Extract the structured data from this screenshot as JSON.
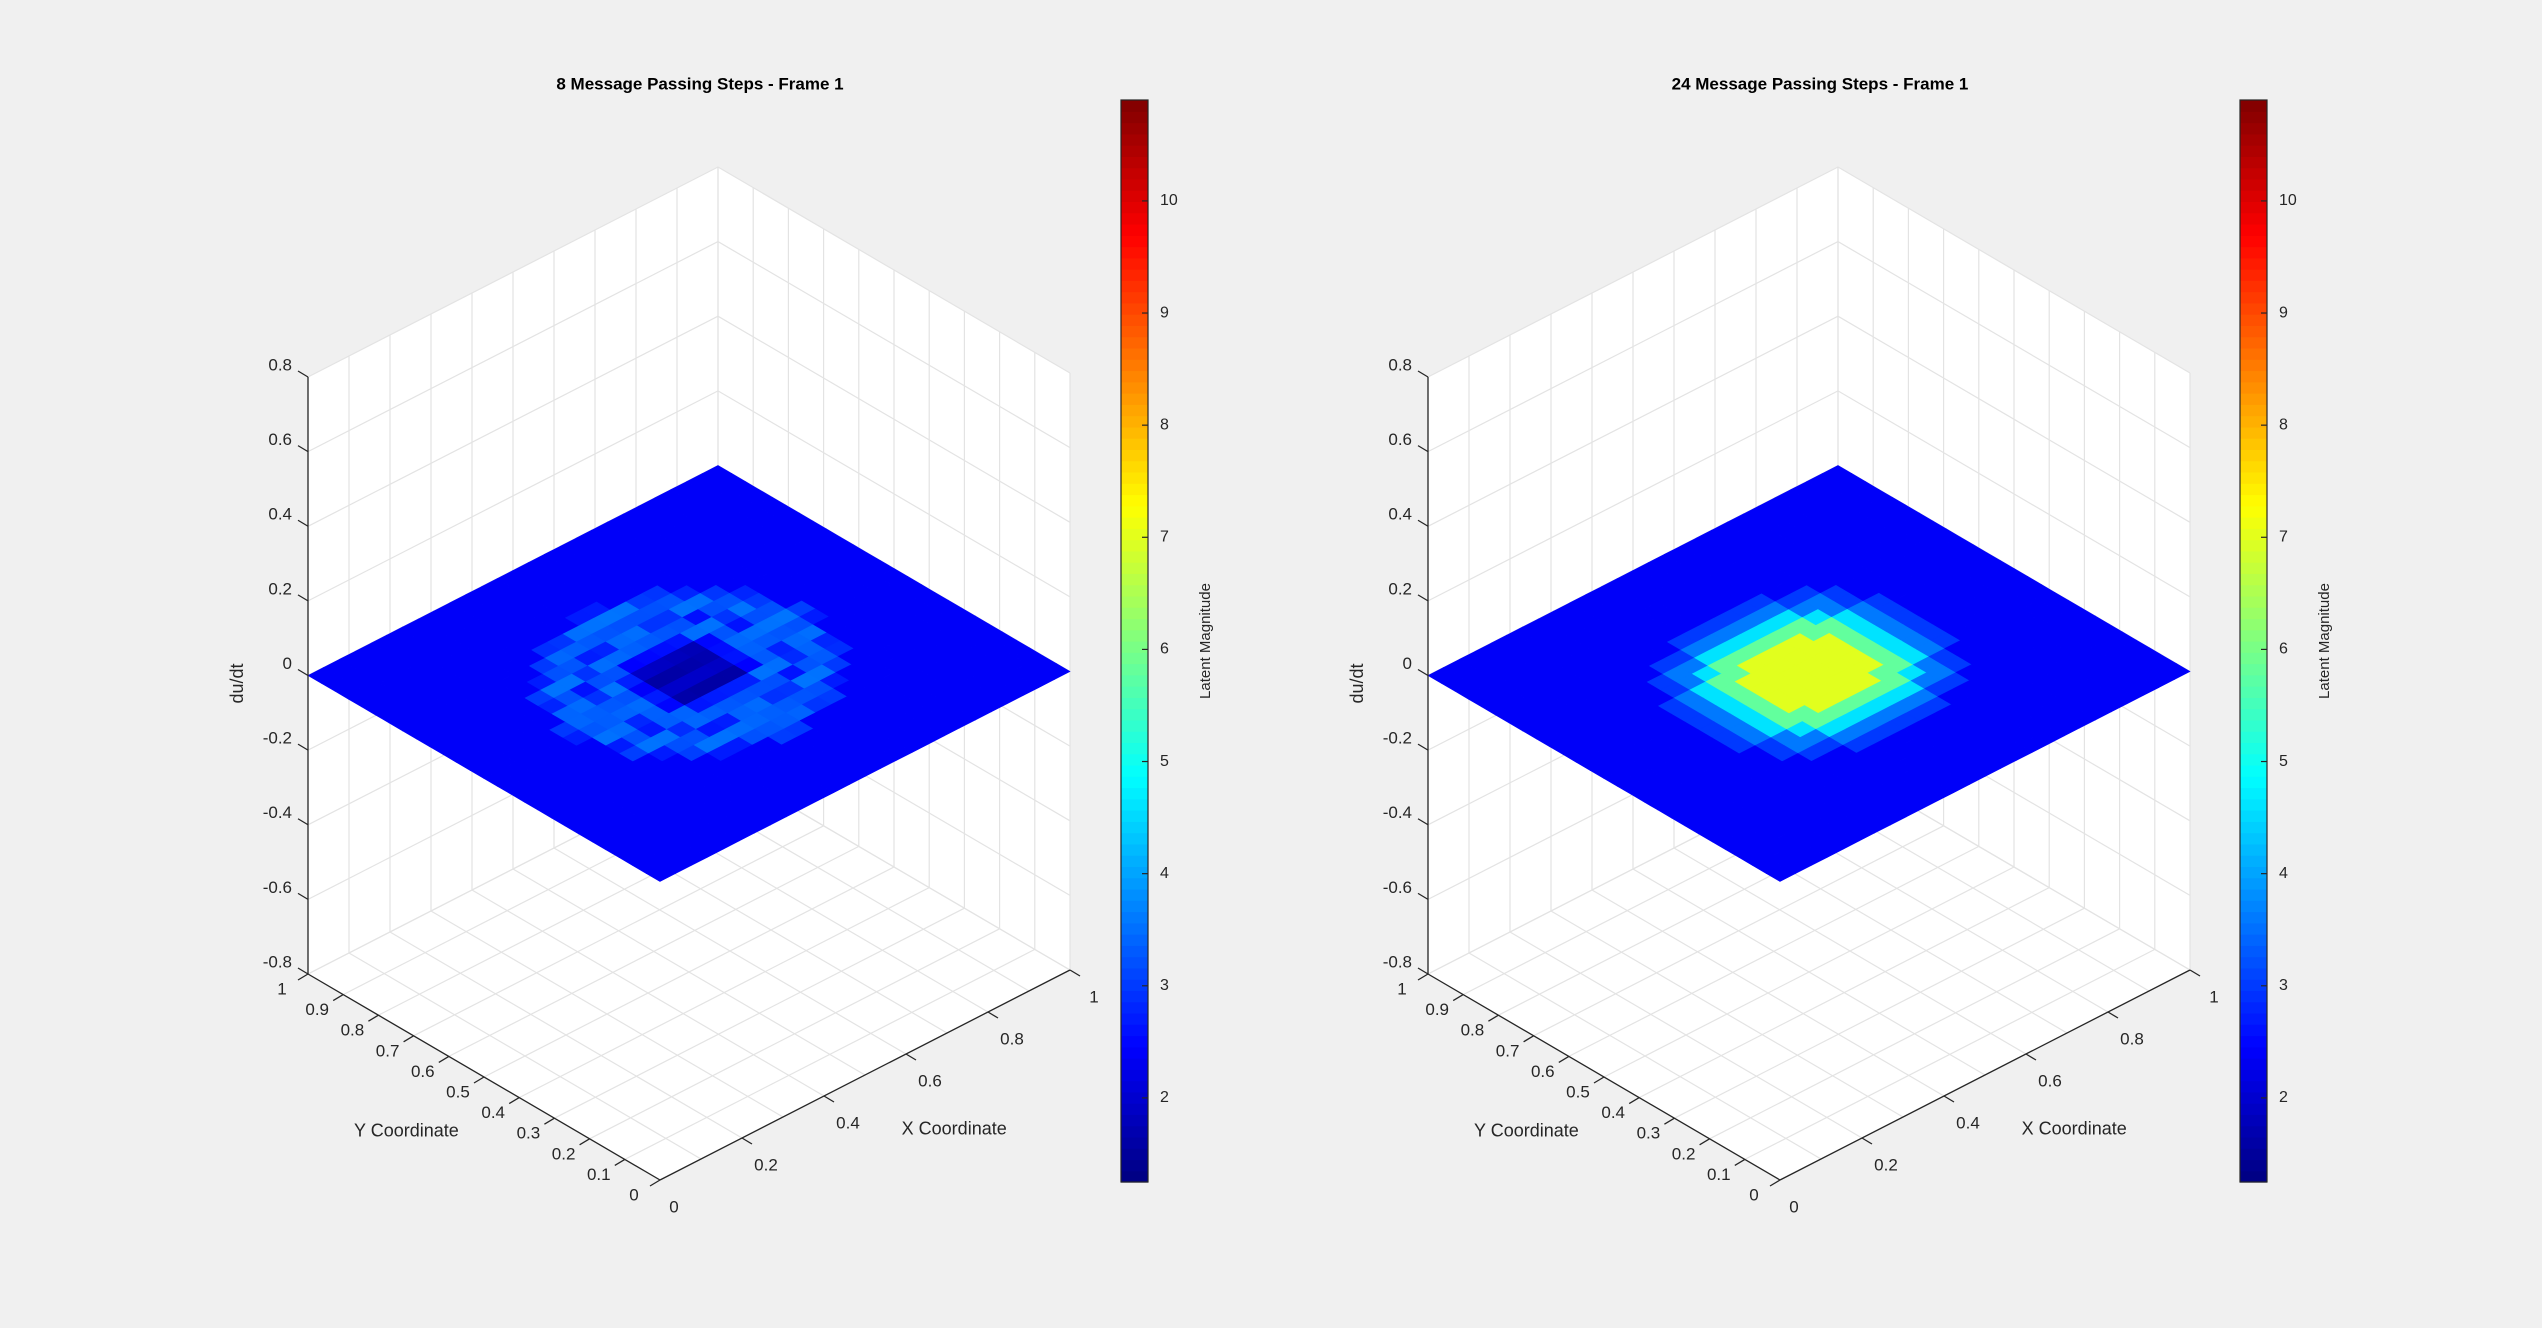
{
  "figure": {
    "background": "#f0f0f0"
  },
  "chart_data": [
    {
      "type": "surface3d",
      "title": "8 Message Passing Steps - Frame 1",
      "xlabel": "X Coordinate",
      "ylabel": "Y Coordinate",
      "zlabel": "du/dt",
      "colorbar_label": "Latent Magnitude",
      "xlim": [
        0,
        1
      ],
      "ylim": [
        0,
        1
      ],
      "zlim": [
        -0.8,
        0.8
      ],
      "clim": [
        1.25,
        10.9
      ],
      "colormap": "jet",
      "x_ticks": [
        "0.2",
        "0.4",
        "0.6",
        "0.8",
        "1"
      ],
      "y_ticks": [
        "0",
        "0.1",
        "0.2",
        "0.3",
        "0.4",
        "0.5",
        "0.6",
        "0.7",
        "0.8",
        "0.9",
        "1"
      ],
      "z_ticks": [
        "-0.8",
        "-0.6",
        "-0.4",
        "-0.2",
        "0",
        "0.2",
        "0.4",
        "0.6",
        "0.8"
      ],
      "colorbar_ticks": [
        "2",
        "3",
        "4",
        "5",
        "6",
        "7",
        "8",
        "9",
        "10"
      ],
      "origin_label": "0",
      "surface": {
        "base_z": 0,
        "pattern": "rings",
        "center": [
          0.5,
          0.5
        ],
        "background_magnitude": 2.4,
        "center_magnitude": 1.6,
        "ring_magnitude": 3.2
      }
    },
    {
      "type": "surface3d",
      "title": "24 Message Passing Steps - Frame 1",
      "xlabel": "X Coordinate",
      "ylabel": "Y Coordinate",
      "zlabel": "du/dt",
      "colorbar_label": "Latent Magnitude",
      "xlim": [
        0,
        1
      ],
      "ylim": [
        0,
        1
      ],
      "zlim": [
        -0.8,
        0.8
      ],
      "clim": [
        1.25,
        10.9
      ],
      "colormap": "jet",
      "x_ticks": [
        "0.2",
        "0.4",
        "0.6",
        "0.8",
        "1"
      ],
      "y_ticks": [
        "0",
        "0.1",
        "0.2",
        "0.3",
        "0.4",
        "0.5",
        "0.6",
        "0.7",
        "0.8",
        "0.9",
        "1"
      ],
      "z_ticks": [
        "-0.8",
        "-0.6",
        "-0.4",
        "-0.2",
        "0",
        "0.2",
        "0.4",
        "0.6",
        "0.8"
      ],
      "colorbar_ticks": [
        "2",
        "3",
        "4",
        "5",
        "6",
        "7",
        "8",
        "9",
        "10"
      ],
      "origin_label": "0",
      "surface": {
        "base_z": 0,
        "pattern": "dome",
        "center": [
          0.5,
          0.5
        ],
        "background_magnitude": 2.4,
        "center_magnitude": 7.0
      }
    }
  ]
}
